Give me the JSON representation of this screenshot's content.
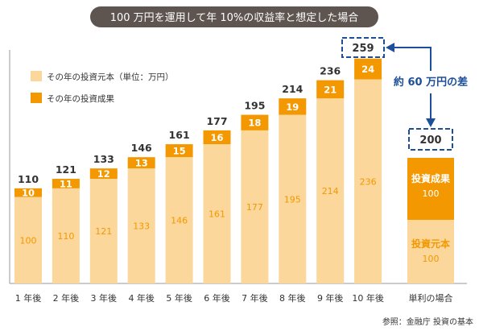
{
  "chart_data": {
    "type": "bar",
    "stacked": true,
    "title": "100 万円を運用して年 10%の収益率と想定した場合",
    "categories": [
      "1 年後",
      "2 年後",
      "3 年後",
      "4 年後",
      "5 年後",
      "6 年後",
      "7 年後",
      "8 年後",
      "9 年後",
      "10 年後"
    ],
    "series": [
      {
        "name": "その年の投資元本（単位：万円）",
        "values": [
          100,
          110,
          121,
          133,
          146,
          161,
          177,
          195,
          214,
          236
        ],
        "color": "#fbd79b",
        "label_color": "#f39800"
      },
      {
        "name": "その年の投資成果",
        "values": [
          10,
          11,
          12,
          13,
          15,
          16,
          18,
          19,
          21,
          24
        ],
        "color": "#f39800",
        "label_color": "#ffffff"
      }
    ],
    "totals": [
      110,
      121,
      133,
      146,
      161,
      177,
      195,
      214,
      236,
      259
    ],
    "total_highlight": "259",
    "ylim": [
      0,
      270
    ],
    "legend_position": "top-left",
    "simple_interest": {
      "category": "単利の場合",
      "total": "200",
      "principal": {
        "label": "投資元本",
        "value": "100",
        "color": "#fbd79b"
      },
      "gain": {
        "label": "投資成果",
        "value": "100",
        "color": "#f39800"
      }
    },
    "annotation": "約 60 万円の差",
    "source": "参照：金融庁 投資の基本"
  },
  "colors": {
    "title_bg": "#5e5450",
    "accent": "#1d4e9a",
    "axis": "#999999",
    "text": "#333333"
  }
}
